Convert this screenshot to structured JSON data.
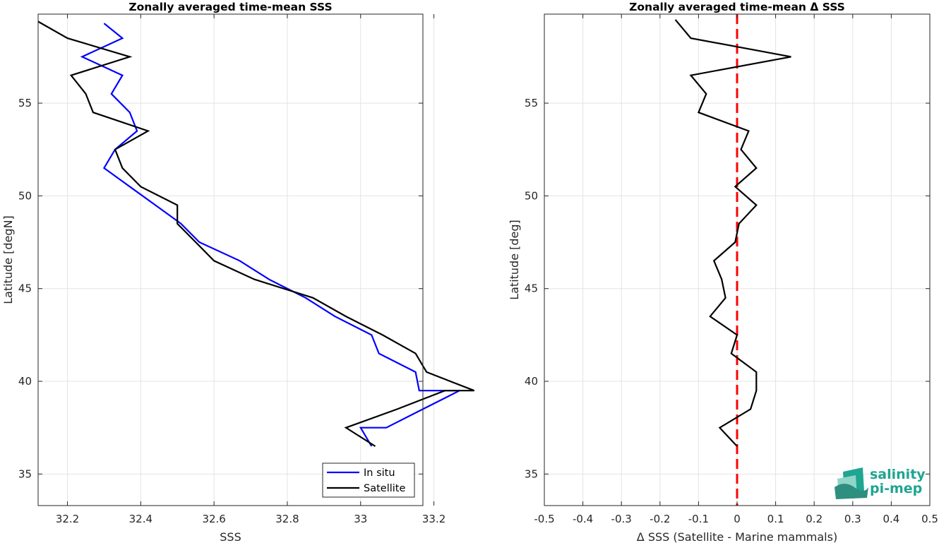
{
  "chart_data": [
    {
      "type": "line",
      "title": "Zonally averaged time-mean SSS",
      "xlabel": "SSS",
      "ylabel": "Latitude [degN]",
      "xlim": [
        32.12,
        33.17
      ],
      "ylim": [
        33.3,
        59.8
      ],
      "xticks": [
        32.2,
        32.4,
        32.6,
        32.8,
        33,
        33.2
      ],
      "xtick_labels": [
        "32.2",
        "32.4",
        "32.6",
        "32.8",
        "33",
        "33.2"
      ],
      "yticks": [
        35,
        40,
        45,
        50,
        55
      ],
      "ytick_labels": [
        "35",
        "40",
        "45",
        "50",
        "55"
      ],
      "grid": true,
      "legend_position": "bottom-right",
      "series": [
        {
          "name": "In situ",
          "color": "#0000ff",
          "x": [
            32.3,
            32.35,
            32.24,
            32.35,
            32.32,
            32.37,
            32.39,
            32.33,
            32.3,
            32.37,
            32.44,
            32.51,
            32.56,
            32.67,
            32.75,
            32.85,
            32.93,
            33.03,
            33.05,
            33.15,
            33.16,
            33.27,
            33.17,
            33.07,
            33.0,
            33.03
          ],
          "y": [
            59.3,
            58.5,
            57.5,
            56.5,
            55.5,
            54.5,
            53.5,
            52.5,
            51.5,
            50.5,
            49.5,
            48.5,
            47.5,
            46.5,
            45.5,
            44.5,
            43.5,
            42.5,
            41.5,
            40.5,
            39.5,
            39.5,
            38.5,
            37.5,
            37.5,
            36.5
          ]
        },
        {
          "name": "Satellite",
          "color": "#000000",
          "x": [
            32.12,
            32.2,
            32.37,
            32.21,
            32.25,
            32.27,
            32.42,
            32.33,
            32.35,
            32.4,
            32.5,
            32.5,
            32.55,
            32.6,
            32.71,
            32.87,
            32.96,
            33.06,
            33.15,
            33.18,
            33.31,
            33.23,
            33.1,
            32.96,
            33.04
          ],
          "y": [
            59.4,
            58.5,
            57.5,
            56.5,
            55.5,
            54.5,
            53.5,
            52.5,
            51.5,
            50.5,
            49.5,
            48.5,
            47.5,
            46.5,
            45.5,
            44.5,
            43.5,
            42.5,
            41.5,
            40.5,
            39.5,
            39.5,
            38.5,
            37.5,
            36.5
          ]
        }
      ]
    },
    {
      "type": "line",
      "title": "Zonally averaged time-mean Δ SSS",
      "xlabel": "Δ SSS (Satellite - Marine mammals)",
      "ylabel": "Latitude [deg]",
      "xlim": [
        -0.5,
        0.5
      ],
      "ylim": [
        33.3,
        59.8
      ],
      "xticks": [
        -0.5,
        -0.4,
        -0.3,
        -0.2,
        -0.1,
        0,
        0.1,
        0.2,
        0.3,
        0.4,
        0.5
      ],
      "xtick_labels": [
        "-0.5",
        "-0.4",
        "-0.3",
        "-0.2",
        "-0.1",
        "0",
        "0.1",
        "0.2",
        "0.3",
        "0.4",
        "0.5"
      ],
      "yticks": [
        35,
        40,
        45,
        50,
        55
      ],
      "ytick_labels": [
        "35",
        "40",
        "45",
        "50",
        "55"
      ],
      "grid": true,
      "reference_line": {
        "x": 0,
        "color": "#ff0000",
        "style": "dashed"
      },
      "series": [
        {
          "color": "#000000",
          "x": [
            -0.16,
            -0.12,
            0.14,
            -0.12,
            -0.08,
            -0.1,
            0.03,
            0.01,
            0.05,
            -0.005,
            0.05,
            0.005,
            -0.005,
            -0.06,
            -0.04,
            -0.03,
            -0.07,
            0.0,
            -0.015,
            0.05,
            0.05,
            0.035,
            -0.045,
            0.0
          ],
          "y": [
            59.5,
            58.5,
            57.5,
            56.5,
            55.5,
            54.5,
            53.5,
            52.5,
            51.5,
            50.5,
            49.5,
            48.5,
            47.5,
            46.5,
            45.5,
            44.5,
            43.5,
            42.5,
            41.5,
            40.5,
            39.5,
            38.5,
            37.5,
            36.5
          ]
        }
      ]
    }
  ],
  "logo": {
    "line1": "salinity",
    "line2": "pi-mep",
    "colors": [
      "#1fa592",
      "#8fd6c8",
      "#2e8f80"
    ]
  }
}
